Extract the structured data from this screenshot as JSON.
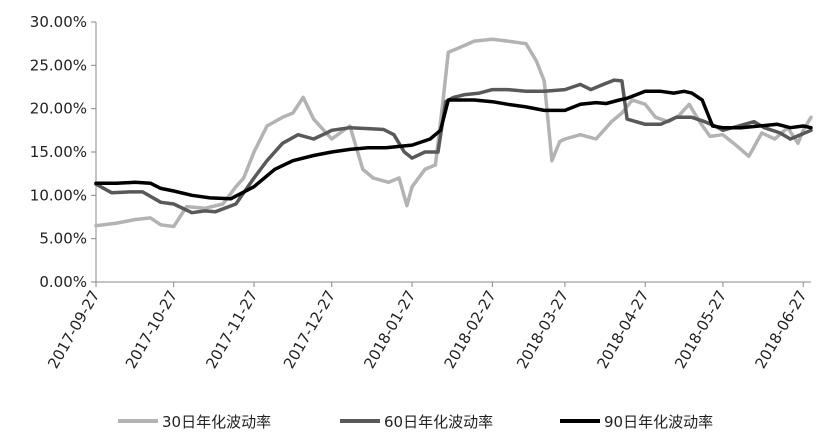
{
  "chart_data": {
    "type": "line",
    "title": "",
    "xlabel": "",
    "ylabel": "",
    "ylim": [
      0,
      0.3
    ],
    "y_tick_labels": [
      "0.00%",
      "5.00%",
      "10.00%",
      "15.00%",
      "20.00%",
      "25.00%",
      "30.00%"
    ],
    "x_tick_labels": [
      "2017-09-27",
      "2017-10-27",
      "2017-11-27",
      "2017-12-27",
      "2018-01-27",
      "2018-02-27",
      "2018-03-27",
      "2018-04-27",
      "2018-05-27",
      "2018-06-27"
    ],
    "grid": false,
    "legend": "bottom",
    "series": [
      {
        "name": "30日年化波动率",
        "color": "#b3b3b3",
        "x": [
          "2017-09-27",
          "2017-10-05",
          "2017-10-12",
          "2017-10-18",
          "2017-10-22",
          "2017-10-27",
          "2017-11-01",
          "2017-11-08",
          "2017-11-15",
          "2017-11-20",
          "2017-11-23",
          "2017-11-27",
          "2017-12-02",
          "2017-12-08",
          "2017-12-12",
          "2017-12-16",
          "2017-12-20",
          "2017-12-27",
          "2018-01-03",
          "2018-01-08",
          "2018-01-12",
          "2018-01-18",
          "2018-01-22",
          "2018-01-25",
          "2018-01-27",
          "2018-02-01",
          "2018-02-05",
          "2018-02-08",
          "2018-02-10",
          "2018-02-14",
          "2018-02-20",
          "2018-02-27",
          "2018-03-05",
          "2018-03-12",
          "2018-03-16",
          "2018-03-19",
          "2018-03-22",
          "2018-03-25",
          "2018-03-27",
          "2018-04-02",
          "2018-04-08",
          "2018-04-14",
          "2018-04-18",
          "2018-04-22",
          "2018-04-27",
          "2018-05-01",
          "2018-05-06",
          "2018-05-10",
          "2018-05-14",
          "2018-05-18",
          "2018-05-22",
          "2018-05-27",
          "2018-06-01",
          "2018-06-06",
          "2018-06-11",
          "2018-06-16",
          "2018-06-21",
          "2018-06-25",
          "2018-06-27",
          "2018-06-30"
        ],
        "values": [
          0.065,
          0.068,
          0.072,
          0.074,
          0.066,
          0.064,
          0.087,
          0.085,
          0.09,
          0.11,
          0.12,
          0.15,
          0.18,
          0.19,
          0.195,
          0.213,
          0.188,
          0.165,
          0.18,
          0.13,
          0.12,
          0.115,
          0.12,
          0.088,
          0.11,
          0.13,
          0.135,
          0.21,
          0.265,
          0.27,
          0.278,
          0.28,
          0.278,
          0.275,
          0.255,
          0.232,
          0.14,
          0.162,
          0.165,
          0.17,
          0.165,
          0.185,
          0.195,
          0.21,
          0.205,
          0.19,
          0.185,
          0.192,
          0.205,
          0.185,
          0.168,
          0.17,
          0.158,
          0.145,
          0.172,
          0.165,
          0.178,
          0.16,
          0.175,
          0.19
        ]
      },
      {
        "name": "60日年化波动率",
        "color": "#595959",
        "x": [
          "2017-09-27",
          "2017-10-03",
          "2017-10-10",
          "2017-10-15",
          "2017-10-22",
          "2017-10-27",
          "2017-11-03",
          "2017-11-08",
          "2017-11-12",
          "2017-11-20",
          "2017-11-27",
          "2017-12-02",
          "2017-12-08",
          "2017-12-14",
          "2017-12-20",
          "2017-12-25",
          "2017-12-27",
          "2018-01-03",
          "2018-01-10",
          "2018-01-16",
          "2018-01-20",
          "2018-01-24",
          "2018-01-27",
          "2018-02-01",
          "2018-02-06",
          "2018-02-09",
          "2018-02-12",
          "2018-02-16",
          "2018-02-22",
          "2018-02-27",
          "2018-03-05",
          "2018-03-12",
          "2018-03-19",
          "2018-03-27",
          "2018-04-02",
          "2018-04-06",
          "2018-04-10",
          "2018-04-15",
          "2018-04-18",
          "2018-04-20",
          "2018-04-27",
          "2018-05-03",
          "2018-05-09",
          "2018-05-15",
          "2018-05-20",
          "2018-05-24",
          "2018-05-27",
          "2018-06-02",
          "2018-06-08",
          "2018-06-12",
          "2018-06-18",
          "2018-06-22",
          "2018-06-26",
          "2018-06-30"
        ],
        "values": [
          0.113,
          0.103,
          0.104,
          0.104,
          0.092,
          0.09,
          0.08,
          0.082,
          0.081,
          0.09,
          0.12,
          0.14,
          0.16,
          0.17,
          0.165,
          0.172,
          0.175,
          0.178,
          0.177,
          0.176,
          0.17,
          0.15,
          0.143,
          0.15,
          0.15,
          0.208,
          0.213,
          0.216,
          0.218,
          0.222,
          0.222,
          0.22,
          0.22,
          0.222,
          0.228,
          0.222,
          0.227,
          0.233,
          0.232,
          0.188,
          0.182,
          0.182,
          0.19,
          0.19,
          0.185,
          0.18,
          0.175,
          0.18,
          0.185,
          0.178,
          0.172,
          0.165,
          0.17,
          0.175
        ]
      },
      {
        "name": "90日年化波动率",
        "color": "#000000",
        "x": [
          "2017-09-27",
          "2017-10-05",
          "2017-10-12",
          "2017-10-18",
          "2017-10-22",
          "2017-10-27",
          "2017-11-03",
          "2017-11-10",
          "2017-11-18",
          "2017-11-27",
          "2017-12-05",
          "2017-12-12",
          "2017-12-20",
          "2017-12-27",
          "2018-01-03",
          "2018-01-10",
          "2018-01-17",
          "2018-01-24",
          "2018-01-27",
          "2018-02-03",
          "2018-02-07",
          "2018-02-10",
          "2018-02-14",
          "2018-02-20",
          "2018-02-27",
          "2018-03-05",
          "2018-03-12",
          "2018-03-19",
          "2018-03-27",
          "2018-04-02",
          "2018-04-08",
          "2018-04-12",
          "2018-04-17",
          "2018-04-20",
          "2018-04-27",
          "2018-05-03",
          "2018-05-08",
          "2018-05-12",
          "2018-05-15",
          "2018-05-19",
          "2018-05-23",
          "2018-05-27",
          "2018-06-03",
          "2018-06-10",
          "2018-06-17",
          "2018-06-22",
          "2018-06-27",
          "2018-06-30"
        ],
        "values": [
          0.114,
          0.114,
          0.115,
          0.114,
          0.108,
          0.105,
          0.1,
          0.097,
          0.096,
          0.11,
          0.13,
          0.14,
          0.146,
          0.15,
          0.153,
          0.155,
          0.155,
          0.157,
          0.158,
          0.165,
          0.175,
          0.21,
          0.21,
          0.21,
          0.208,
          0.205,
          0.202,
          0.198,
          0.198,
          0.205,
          0.207,
          0.206,
          0.21,
          0.212,
          0.22,
          0.22,
          0.218,
          0.22,
          0.218,
          0.21,
          0.18,
          0.178,
          0.178,
          0.18,
          0.182,
          0.178,
          0.18,
          0.178
        ]
      }
    ]
  }
}
